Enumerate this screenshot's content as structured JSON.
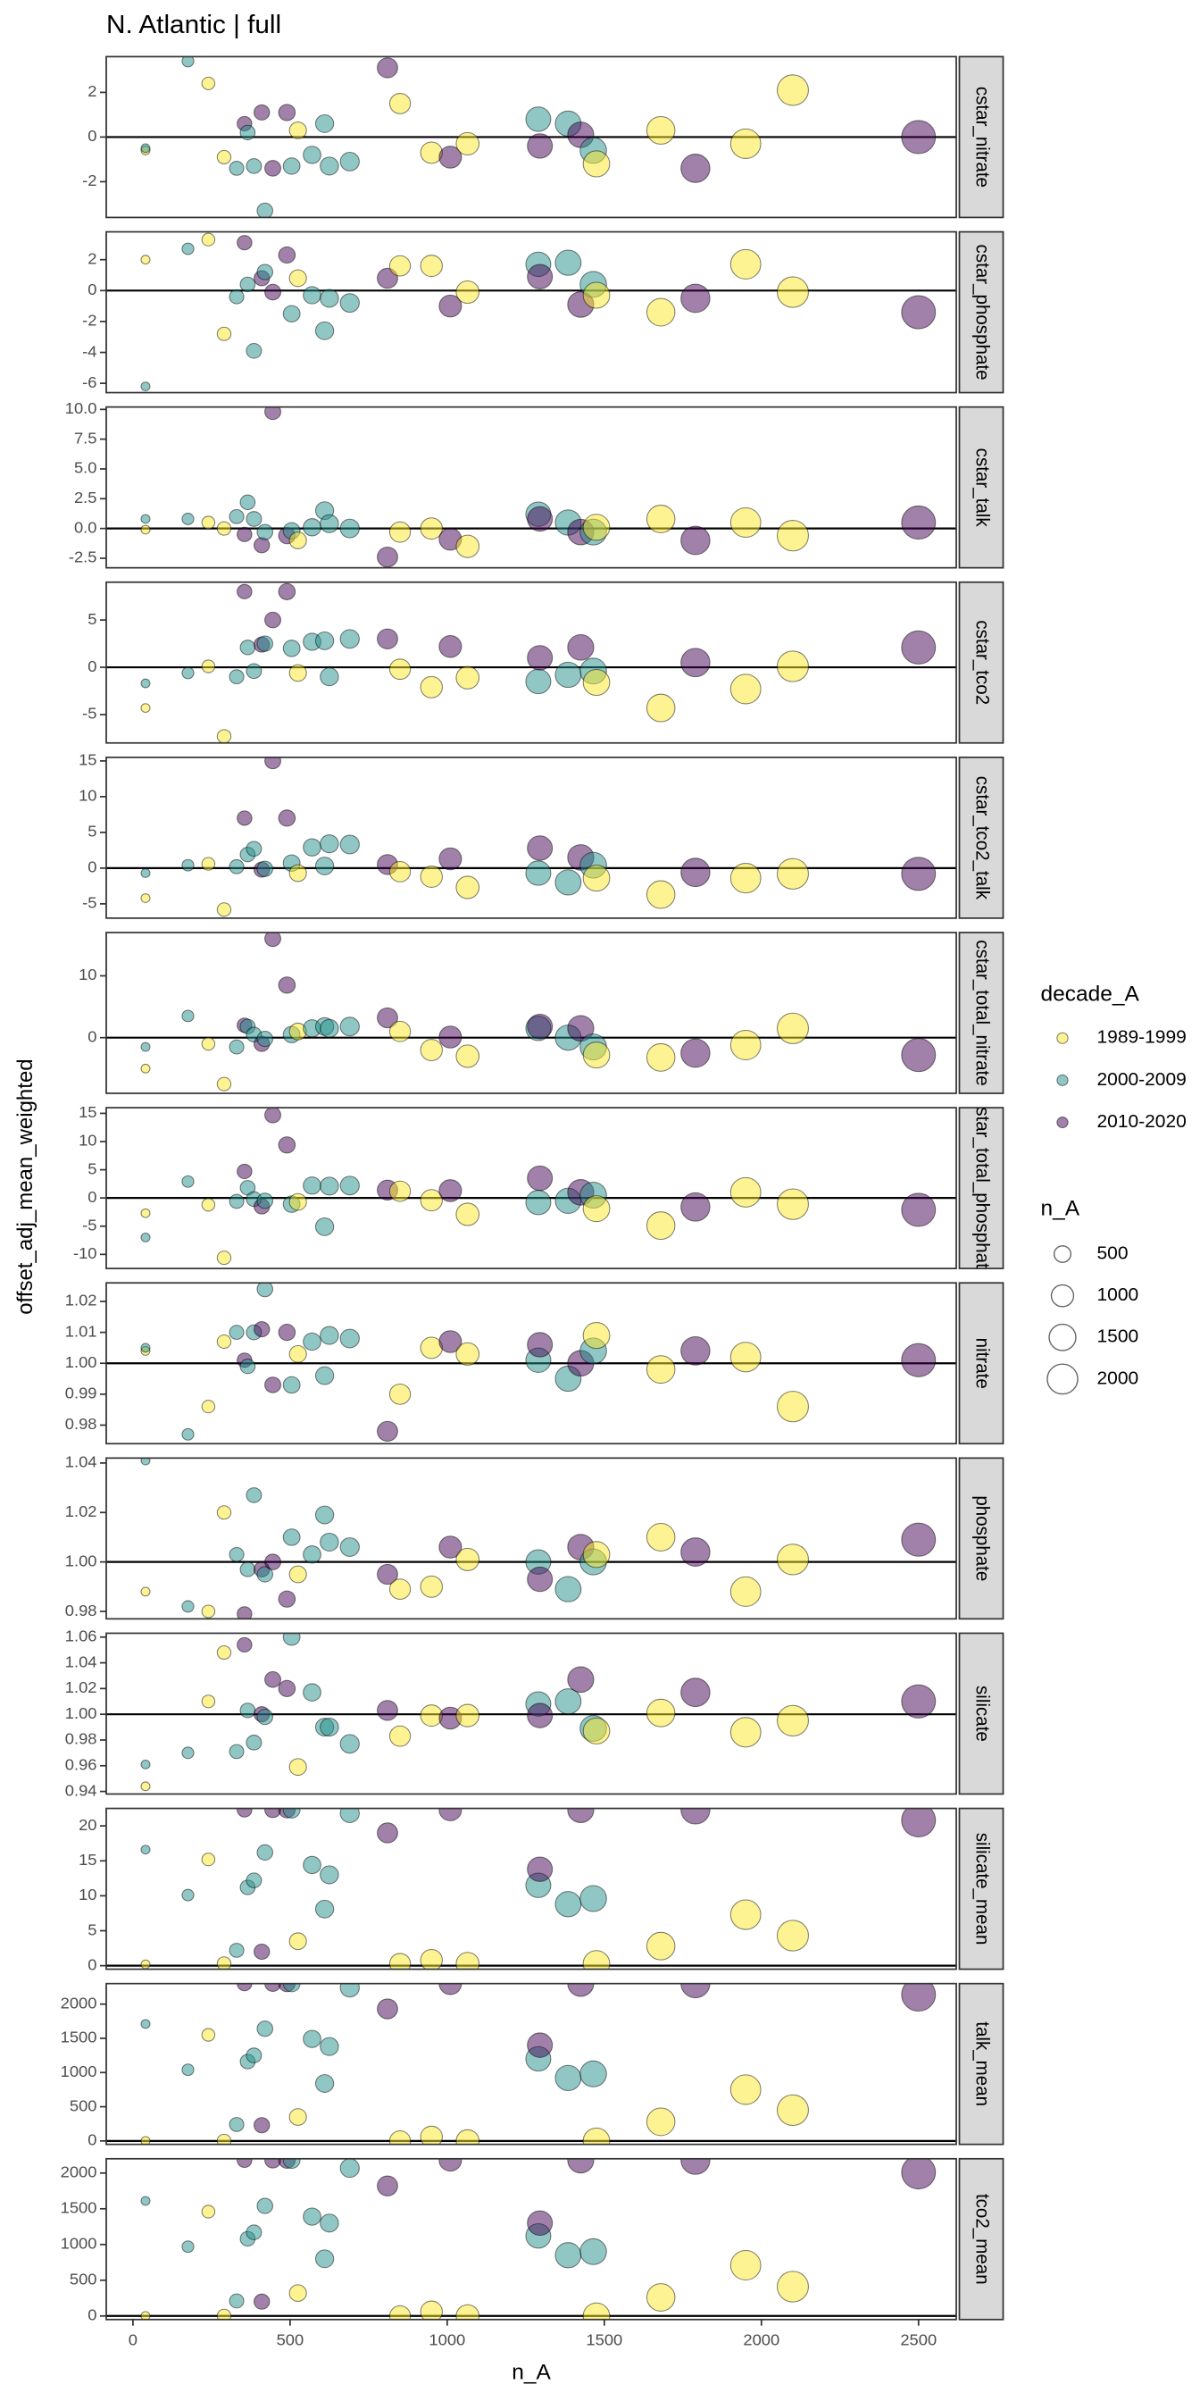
{
  "chart_data": {
    "type": "scatter",
    "title": "N. Atlantic | full",
    "x_label": "n_A",
    "y_label": "offset_adj_mean_weighted",
    "xlim": [
      -85,
      2620
    ],
    "xticks": [
      0,
      500,
      1000,
      1500,
      2000,
      2500
    ],
    "x": [
      40,
      40,
      175,
      240,
      290,
      330,
      355,
      365,
      385,
      410,
      420,
      445,
      490,
      505,
      525,
      570,
      610,
      625,
      690,
      810,
      850,
      950,
      1010,
      1065,
      1290,
      1295,
      1385,
      1425,
      1465,
      1475,
      1680,
      1790,
      1950,
      2100,
      2500
    ],
    "decade": [
      "1989-1999",
      "2000-2009",
      "2000-2009",
      "1989-1999",
      "1989-1999",
      "2000-2009",
      "2010-2020",
      "2000-2009",
      "2000-2009",
      "2010-2020",
      "2000-2009",
      "2010-2020",
      "2010-2020",
      "2000-2009",
      "1989-1999",
      "2000-2009",
      "2000-2009",
      "2000-2009",
      "2000-2009",
      "2010-2020",
      "1989-1999",
      "1989-1999",
      "2010-2020",
      "1989-1999",
      "2000-2009",
      "2010-2020",
      "2000-2009",
      "2010-2020",
      "2000-2009",
      "1989-1999",
      "1989-1999",
      "2010-2020",
      "1989-1999",
      "1989-1999",
      "2010-2020"
    ],
    "color_title": "decade_A",
    "decades": [
      {
        "name": "1989-1999",
        "color": "#fde725"
      },
      {
        "name": "2000-2009",
        "color": "#21908c"
      },
      {
        "name": "2010-2020",
        "color": "#440154"
      }
    ],
    "size_title": "n_A",
    "size_ticks": [
      500,
      1000,
      1500,
      2000
    ],
    "panels": [
      {
        "label": "cstar_nitrate",
        "ylim": [
          -3.6,
          3.6
        ],
        "yticks": [
          -2,
          0,
          2
        ],
        "hline": 0,
        "values": [
          -0.6,
          -0.5,
          3.4,
          2.4,
          -0.9,
          -1.4,
          0.6,
          0.2,
          -1.3,
          1.1,
          -3.3,
          -1.4,
          1.1,
          -1.3,
          0.3,
          -0.8,
          0.6,
          -1.3,
          -1.1,
          3.1,
          1.5,
          -0.7,
          -0.9,
          -0.3,
          0.8,
          -0.4,
          0.6,
          0.1,
          -0.6,
          -1.2,
          0.3,
          -1.4,
          -0.3,
          2.1,
          0.0
        ]
      },
      {
        "label": "cstar_phosphate",
        "ylim": [
          -6.6,
          3.8
        ],
        "yticks": [
          -6,
          -4,
          -2,
          0,
          2
        ],
        "hline": 0,
        "values": [
          2.0,
          -6.2,
          2.7,
          3.3,
          -2.8,
          -0.4,
          3.1,
          0.4,
          -3.9,
          0.8,
          1.2,
          -0.1,
          2.3,
          -1.5,
          0.8,
          -0.3,
          -2.6,
          -0.5,
          -0.8,
          0.8,
          1.6,
          1.6,
          -1.0,
          -0.1,
          1.7,
          0.9,
          1.8,
          -0.9,
          0.4,
          -0.3,
          -1.4,
          -0.5,
          1.7,
          -0.1,
          -1.4
        ]
      },
      {
        "label": "cstar_talk",
        "ylim": [
          -3.3,
          10.2
        ],
        "yticks": [
          -2.5,
          {
            "value": 0,
            "label": "0.0"
          },
          2.5,
          {
            "value": 5,
            "label": "5.0"
          },
          7.5,
          {
            "value": 10,
            "label": "10.0"
          }
        ],
        "hline": 0,
        "values": [
          -0.1,
          0.8,
          0.8,
          0.5,
          0.0,
          1.0,
          -0.5,
          2.2,
          0.8,
          -1.4,
          -0.3,
          9.8,
          -0.6,
          -0.2,
          -1.0,
          0.1,
          1.5,
          0.4,
          0.0,
          -2.4,
          -0.3,
          0.0,
          -0.9,
          -1.5,
          1.2,
          0.8,
          0.5,
          -0.3,
          -0.3,
          0.1,
          0.8,
          -1.0,
          0.5,
          -0.6,
          0.5
        ]
      },
      {
        "label": "cstar_tco2",
        "ylim": [
          -8,
          9
        ],
        "yticks": [
          -5,
          0,
          5
        ],
        "hline": 0,
        "values": [
          -4.3,
          -1.7,
          -0.6,
          0.1,
          -7.3,
          -1.0,
          8.0,
          2.1,
          -0.4,
          2.4,
          2.5,
          5.0,
          8.0,
          2.0,
          -0.6,
          2.7,
          2.8,
          -1.0,
          3.0,
          3.0,
          -0.2,
          -2.1,
          2.2,
          -1.1,
          -1.5,
          1.0,
          -0.8,
          2.1,
          -0.4,
          -1.6,
          -4.3,
          0.5,
          -2.3,
          0.1,
          2.1
        ]
      },
      {
        "label": "cstar_tco2_talk",
        "ylim": [
          -7,
          15.5
        ],
        "yticks": [
          -5,
          0,
          5,
          10,
          15
        ],
        "hline": 0,
        "values": [
          -4.2,
          -0.7,
          0.4,
          0.6,
          -5.8,
          0.2,
          7.0,
          1.9,
          2.7,
          -0.2,
          -0.1,
          15,
          7.0,
          0.7,
          -0.7,
          2.9,
          0.3,
          3.4,
          3.3,
          0.5,
          -0.5,
          -1.2,
          1.3,
          -2.7,
          -0.7,
          2.8,
          -2.0,
          1.5,
          0.4,
          -1.4,
          -3.7,
          -0.6,
          -1.4,
          -0.8,
          -0.8
        ]
      },
      {
        "label": "cstar_total_nitrate",
        "ylim": [
          -9,
          17
        ],
        "yticks": [
          0,
          10
        ],
        "hline": 0,
        "values": [
          -5.0,
          -1.5,
          3.5,
          -1.0,
          -7.5,
          -1.5,
          2.0,
          1.8,
          0.5,
          -1.0,
          -0.2,
          16,
          8.5,
          0.5,
          1.0,
          1.5,
          1.8,
          1.5,
          1.8,
          3.2,
          1.0,
          -2.0,
          0.1,
          -3.0,
          1.5,
          1.8,
          0.0,
          1.5,
          -1.5,
          -2.8,
          -3.2,
          -2.5,
          -1.2,
          1.5,
          -2.8
        ]
      },
      {
        "label": "cstar_total_phosphate",
        "ylim": [
          -12.5,
          16
        ],
        "yticks": [
          -10,
          -5,
          0,
          5,
          10,
          15
        ],
        "hline": 0,
        "values": [
          -2.7,
          -7.0,
          2.9,
          -1.2,
          -10.6,
          -0.6,
          4.7,
          1.8,
          -0.2,
          -1.5,
          -0.5,
          14.7,
          9.4,
          -1.1,
          -0.7,
          2.2,
          -5.1,
          2.1,
          2.2,
          1.4,
          1.2,
          -0.4,
          1.3,
          -2.9,
          -0.8,
          3.5,
          -0.5,
          1.0,
          0.5,
          -1.9,
          -4.9,
          -1.6,
          1.0,
          -1.1,
          -2.1
        ]
      },
      {
        "label": "nitrate",
        "ylim": [
          0.974,
          1.026
        ],
        "yticks": [
          0.98,
          0.99,
          {
            "value": 1,
            "label": "1.00"
          },
          1.01,
          1.02
        ],
        "hline": 1,
        "values": [
          1.004,
          1.005,
          0.977,
          0.986,
          1.007,
          1.01,
          1.001,
          0.999,
          1.01,
          1.011,
          1.024,
          0.993,
          1.01,
          0.993,
          1.003,
          1.007,
          0.996,
          1.009,
          1.008,
          0.978,
          0.99,
          1.005,
          1.007,
          1.003,
          1.001,
          1.006,
          0.995,
          1.0,
          1.004,
          1.009,
          0.998,
          1.004,
          1.002,
          0.986,
          1.001
        ]
      },
      {
        "label": "phosphate",
        "ylim": [
          0.977,
          1.042
        ],
        "yticks": [
          0.98,
          {
            "value": 1,
            "label": "1.00"
          },
          1.02,
          1.04
        ],
        "hline": 1,
        "values": [
          0.988,
          1.041,
          0.982,
          0.98,
          1.02,
          1.003,
          0.979,
          0.997,
          1.027,
          0.997,
          0.995,
          1.0,
          0.985,
          1.01,
          0.995,
          1.003,
          1.019,
          1.008,
          1.006,
          0.995,
          0.989,
          0.99,
          1.006,
          1.001,
          1.0,
          0.993,
          0.989,
          1.006,
          1.0,
          1.003,
          1.01,
          1.004,
          0.988,
          1.001,
          1.009
        ]
      },
      {
        "label": "silicate",
        "ylim": [
          0.938,
          1.063
        ],
        "yticks": [
          0.94,
          0.96,
          0.98,
          {
            "value": 1,
            "label": "1.00"
          },
          1.02,
          1.04,
          1.06
        ],
        "hline": 1,
        "values": [
          0.944,
          0.961,
          0.97,
          1.01,
          1.048,
          0.971,
          1.054,
          1.003,
          0.978,
          1.0,
          0.998,
          1.027,
          1.02,
          1.06,
          0.959,
          1.017,
          0.99,
          0.99,
          0.977,
          1.003,
          0.983,
          0.999,
          0.997,
          0.999,
          1.008,
          0.999,
          1.01,
          1.027,
          0.989,
          0.987,
          1.001,
          1.017,
          0.986,
          0.995,
          1.01
        ]
      },
      {
        "label": "silicate_mean",
        "ylim": [
          -0.5,
          22.5
        ],
        "yticks": [
          0,
          5,
          10,
          15,
          20
        ],
        "hline": 0,
        "values": [
          0.2,
          16.6,
          10.1,
          15.2,
          0.3,
          2.2,
          22.3,
          11.2,
          12.2,
          2.0,
          16.2,
          22.3,
          22.3,
          22.3,
          3.5,
          14.4,
          8.1,
          13.0,
          21.8,
          19.0,
          0.3,
          0.8,
          22.3,
          0.3,
          11.5,
          13.8,
          8.8,
          22.3,
          9.6,
          0.3,
          2.8,
          22.3,
          7.3,
          4.3,
          20.8
        ]
      },
      {
        "label": "talk_mean",
        "ylim": [
          -50,
          2300
        ],
        "yticks": [
          0,
          500,
          1000,
          1500,
          2000
        ],
        "hline": 0,
        "values": [
          0,
          1710,
          1040,
          1550,
          0,
          240,
          2300,
          1160,
          1250,
          230,
          1640,
          2300,
          2300,
          2300,
          350,
          1490,
          840,
          1380,
          2240,
          1930,
          0,
          60,
          2300,
          0,
          1200,
          1400,
          920,
          2300,
          980,
          0,
          280,
          2300,
          750,
          450,
          2140
        ]
      },
      {
        "label": "tco2_mean",
        "ylim": [
          -50,
          2200
        ],
        "yticks": [
          0,
          500,
          1000,
          1500,
          2000
        ],
        "hline": 0,
        "values": [
          0,
          1610,
          970,
          1460,
          0,
          210,
          2180,
          1080,
          1170,
          200,
          1540,
          2180,
          2180,
          2180,
          320,
          1390,
          800,
          1300,
          2070,
          1820,
          0,
          60,
          2180,
          0,
          1120,
          1300,
          850,
          2180,
          900,
          0,
          260,
          2180,
          710,
          410,
          2010
        ]
      }
    ]
  }
}
